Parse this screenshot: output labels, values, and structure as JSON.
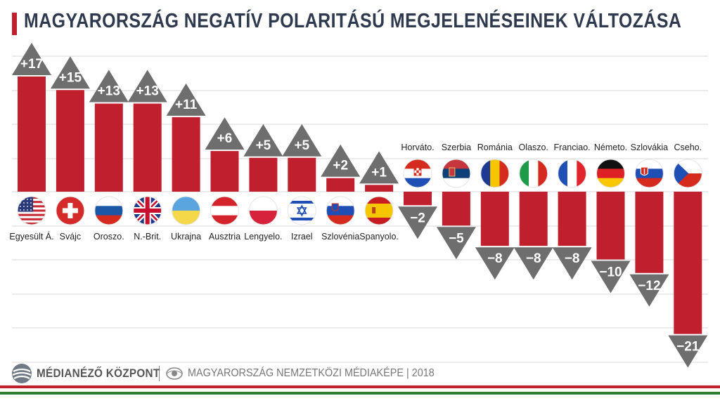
{
  "title": "MAGYARORSZÁG NEGATÍV POLARITÁSÚ MEGJELENÉSEINEK VÁLTOZÁSA",
  "footer": {
    "brand": "MÉDIANÉZŐ KÖZPONT",
    "separator": "|",
    "publication": "MAGYARORSZÁG NEMZETKÖZI MÉDIAKÉPE | 2018"
  },
  "colors": {
    "bar": "#c0202e",
    "triangle": "#6e6e6e",
    "title": "#2f3a4f",
    "grid": "#d9d9d9",
    "stripe_red": "#c0202e",
    "stripe_green": "#2e7d32"
  },
  "chart_data": {
    "type": "bar",
    "title": "MAGYARORSZÁG NEGATÍV POLARITÁSÚ MEGJELENÉSEINEK VÁLTOZÁSA",
    "xlabel": "",
    "ylabel": "",
    "ylim": [
      -24,
      20
    ],
    "grid": true,
    "legend": "none",
    "categories": [
      "Egyesült Á.",
      "Svájc",
      "Oroszo.",
      "N.-Brit.",
      "Ukrajna",
      "Ausztria",
      "Lengyelo.",
      "Izrael",
      "Szlovénia",
      "Spanyolo.",
      "Horváto.",
      "Szerbia",
      "Románia",
      "Olaszo.",
      "Franciao.",
      "Németo.",
      "Szlovákia",
      "Cseho."
    ],
    "values": [
      17,
      15,
      13,
      13,
      11,
      6,
      5,
      5,
      2,
      1,
      -2,
      -5,
      -8,
      -8,
      -8,
      -10,
      -12,
      -21
    ],
    "value_labels": [
      "+17",
      "+15",
      "+13",
      "+13",
      "+11",
      "+6",
      "+5",
      "+5",
      "+2",
      "+1",
      "−2",
      "−5",
      "−8",
      "−8",
      "−8",
      "−10",
      "−12",
      "−21"
    ],
    "flags": [
      "usa-flag-icon",
      "switzerland-flag-icon",
      "russia-flag-icon",
      "uk-flag-icon",
      "ukraine-flag-icon",
      "austria-flag-icon",
      "poland-flag-icon",
      "israel-flag-icon",
      "slovenia-flag-icon",
      "spain-flag-icon",
      "croatia-flag-icon",
      "serbia-flag-icon",
      "romania-flag-icon",
      "italy-flag-icon",
      "france-flag-icon",
      "germany-flag-icon",
      "slovakia-flag-icon",
      "czechia-flag-icon"
    ]
  }
}
